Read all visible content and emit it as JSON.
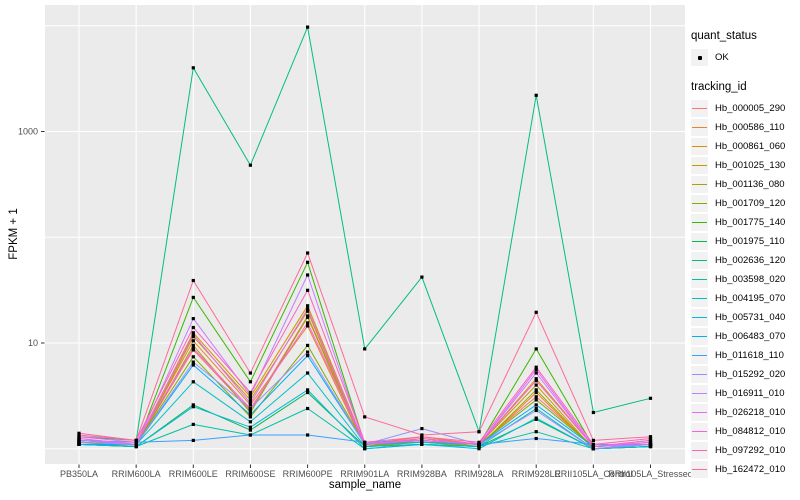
{
  "figure": {
    "y_axis_title": "FPKM + 1",
    "x_axis_title": "sample_name",
    "background": "#FFFFFF",
    "panel_background": "#EBEBEB",
    "gridline_color": "#FFFFFF",
    "tick_label_color": "#4D4D4D",
    "tick_mark_color": "#333333",
    "point_color": "#000000"
  },
  "legend": {
    "key_background": "#F2F2F2",
    "quant_status": {
      "title": "quant_status",
      "items": [
        {
          "label": "OK",
          "marker": "black-point"
        }
      ]
    },
    "tracking_id": {
      "title": "tracking_id"
    }
  },
  "chart_data": {
    "type": "line",
    "title": "",
    "xlabel": "sample_name",
    "ylabel": "FPKM + 1",
    "y_scale": "log10",
    "ylim": [
      1,
      14000
    ],
    "grid": "on",
    "legend_position": "right",
    "y_ticks": [
      {
        "value": 1000,
        "label": "1000"
      },
      {
        "value": 10,
        "label": "10"
      }
    ],
    "y_gridlines": [
      1,
      10,
      100,
      1000,
      10000
    ],
    "categories": [
      "PB350LA",
      "RRIM600LA",
      "RRIM600LE",
      "RRIM600SE",
      "RRIM600PE",
      "RRIM901LA",
      "RRIM928BA",
      "RRIM928LA",
      "RRIM928LE",
      "RRII105LA_Control",
      "RRII105LA_Stressed"
    ],
    "series": [
      {
        "name": "Hb_000005_290",
        "color": "#F8766D",
        "values": [
          1.25,
          1.1,
          8.6,
          2.3,
          18.0,
          1.1,
          1.25,
          1.1,
          3.1,
          1.05,
          1.15
        ]
      },
      {
        "name": "Hb_000586_110",
        "color": "#E88526",
        "values": [
          1.15,
          1.1,
          10.5,
          2.6,
          14.5,
          1.05,
          1.2,
          1.05,
          3.4,
          1.0,
          1.05
        ]
      },
      {
        "name": "Hb_000861_060",
        "color": "#D89000",
        "values": [
          1.2,
          1.1,
          12.5,
          3.1,
          22.5,
          1.1,
          1.3,
          1.1,
          4.6,
          1.05,
          1.2
        ]
      },
      {
        "name": "Hb_001025_130",
        "color": "#C09B00",
        "values": [
          1.15,
          1.05,
          11.5,
          2.9,
          20.0,
          1.05,
          1.25,
          1.1,
          4.0,
          1.0,
          1.1
        ]
      },
      {
        "name": "Hb_001136_080",
        "color": "#A3A500",
        "values": [
          1.1,
          1.05,
          9.5,
          2.2,
          17.5,
          1.05,
          1.15,
          1.05,
          3.6,
          1.0,
          1.05
        ]
      },
      {
        "name": "Hb_001709_120",
        "color": "#7CAE00",
        "values": [
          1.2,
          1.1,
          7.4,
          2.0,
          9.5,
          1.1,
          1.15,
          1.1,
          2.9,
          1.05,
          1.1
        ]
      },
      {
        "name": "Hb_001775_140",
        "color": "#39B600",
        "values": [
          1.1,
          1.05,
          27.0,
          4.3,
          58.0,
          1.1,
          1.2,
          1.1,
          8.8,
          1.05,
          1.1
        ]
      },
      {
        "name": "Hb_001975_110",
        "color": "#00BB4E",
        "values": [
          1.1,
          1.05,
          2.6,
          1.5,
          3.4,
          1.05,
          1.1,
          1.05,
          1.9,
          1.0,
          1.05
        ]
      },
      {
        "name": "Hb_002636_120",
        "color": "#00BF7D",
        "values": [
          1.3,
          1.2,
          4000,
          480,
          9700,
          8.8,
          42.0,
          1.45,
          2200,
          2.2,
          3.0
        ]
      },
      {
        "name": "Hb_003598_020",
        "color": "#00C1A3",
        "values": [
          1.1,
          1.05,
          1.7,
          1.35,
          2.4,
          1.0,
          1.1,
          1.05,
          1.45,
          1.0,
          1.05
        ]
      },
      {
        "name": "Hb_004195_070",
        "color": "#00BFC4",
        "values": [
          1.15,
          1.1,
          4.3,
          1.8,
          5.2,
          1.05,
          1.1,
          1.05,
          2.4,
          1.0,
          1.1
        ]
      },
      {
        "name": "Hb_005731_040",
        "color": "#00BADE",
        "values": [
          1.1,
          1.05,
          2.5,
          1.6,
          3.6,
          1.0,
          1.1,
          1.0,
          1.95,
          1.0,
          1.05
        ]
      },
      {
        "name": "Hb_006483_070",
        "color": "#00B0F6",
        "values": [
          1.1,
          1.1,
          6.2,
          2.1,
          7.6,
          1.1,
          1.15,
          1.1,
          2.6,
          1.05,
          1.1
        ]
      },
      {
        "name": "Hb_011618_110",
        "color": "#35A2FF",
        "values": [
          1.2,
          1.15,
          1.2,
          1.35,
          1.35,
          1.15,
          1.2,
          1.1,
          1.25,
          1.1,
          1.1
        ]
      },
      {
        "name": "Hb_015292_020",
        "color": "#9590FF",
        "values": [
          1.15,
          1.1,
          6.6,
          2.4,
          8.2,
          1.1,
          1.55,
          1.1,
          2.3,
          1.0,
          1.1
        ]
      },
      {
        "name": "Hb_016911_010",
        "color": "#C77CFF",
        "values": [
          1.2,
          1.1,
          17.0,
          3.2,
          44.0,
          1.1,
          1.2,
          1.1,
          5.2,
          1.05,
          1.1
        ]
      },
      {
        "name": "Hb_026218_010",
        "color": "#E76BF3",
        "values": [
          1.25,
          1.1,
          12.0,
          2.7,
          21.0,
          1.1,
          1.2,
          1.1,
          5.6,
          1.05,
          1.15
        ]
      },
      {
        "name": "Hb_084812_010",
        "color": "#FA62DB",
        "values": [
          1.3,
          1.15,
          8.9,
          2.4,
          15.5,
          1.1,
          1.25,
          1.1,
          4.4,
          1.05,
          1.2
        ]
      },
      {
        "name": "Hb_097292_010",
        "color": "#FF62BC",
        "values": [
          1.35,
          1.2,
          14.0,
          3.4,
          31.5,
          1.15,
          1.3,
          1.15,
          5.9,
          1.1,
          1.25
        ]
      },
      {
        "name": "Hb_162472_010",
        "color": "#FF6A98",
        "values": [
          1.4,
          1.2,
          39.0,
          5.2,
          71.0,
          2.0,
          1.35,
          1.45,
          19.5,
          1.2,
          1.3
        ]
      }
    ]
  }
}
